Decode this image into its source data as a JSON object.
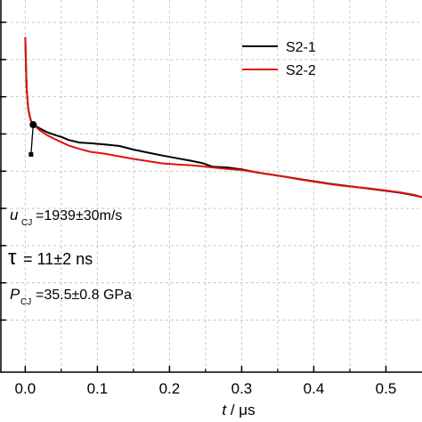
{
  "chart_data": {
    "type": "line",
    "title": "",
    "xlabel_var": "t",
    "xlabel_unit": " / μs",
    "ylabel": "",
    "xlim": [
      -0.035,
      0.55
    ],
    "ylim": [
      0,
      1
    ],
    "x_ticks": [
      0.0,
      0.1,
      0.2,
      0.3,
      0.4,
      0.5
    ],
    "x_tick_labels": [
      "0.0",
      "0.1",
      "0.2",
      "0.3",
      "0.4",
      "0.5"
    ],
    "y_ticks": [
      0.14,
      0.24,
      0.34,
      0.44,
      0.54,
      0.64,
      0.74,
      0.84,
      0.94
    ],
    "grid": true,
    "legend_position": "top-right",
    "series": [
      {
        "name": "S2-1",
        "color": "#000000",
        "points": [
          [
            0.0,
            0.9
          ],
          [
            0.001,
            0.82
          ],
          [
            0.002,
            0.76
          ],
          [
            0.004,
            0.71
          ],
          [
            0.006,
            0.69
          ],
          [
            0.008,
            0.675
          ],
          [
            0.011,
            0.665
          ],
          [
            0.02,
            0.655
          ],
          [
            0.03,
            0.645
          ],
          [
            0.04,
            0.638
          ],
          [
            0.05,
            0.632
          ],
          [
            0.06,
            0.624
          ],
          [
            0.075,
            0.617
          ],
          [
            0.09,
            0.615
          ],
          [
            0.11,
            0.612
          ],
          [
            0.13,
            0.608
          ],
          [
            0.15,
            0.598
          ],
          [
            0.17,
            0.59
          ],
          [
            0.19,
            0.582
          ],
          [
            0.21,
            0.575
          ],
          [
            0.23,
            0.568
          ],
          [
            0.245,
            0.562
          ],
          [
            0.26,
            0.552
          ],
          [
            0.28,
            0.55
          ],
          [
            0.3,
            0.545
          ],
          [
            0.32,
            0.537
          ],
          [
            0.34,
            0.531
          ],
          [
            0.36,
            0.525
          ],
          [
            0.38,
            0.519
          ],
          [
            0.4,
            0.513
          ],
          [
            0.42,
            0.507
          ],
          [
            0.44,
            0.502
          ],
          [
            0.46,
            0.497
          ],
          [
            0.48,
            0.492
          ],
          [
            0.5,
            0.487
          ],
          [
            0.52,
            0.482
          ],
          [
            0.54,
            0.475
          ],
          [
            0.55,
            0.47
          ]
        ]
      },
      {
        "name": "S2-2",
        "color": "#e01010",
        "points": [
          [
            0.0,
            0.9
          ],
          [
            0.001,
            0.82
          ],
          [
            0.002,
            0.76
          ],
          [
            0.004,
            0.71
          ],
          [
            0.006,
            0.69
          ],
          [
            0.008,
            0.675
          ],
          [
            0.011,
            0.665
          ],
          [
            0.02,
            0.65
          ],
          [
            0.03,
            0.637
          ],
          [
            0.04,
            0.627
          ],
          [
            0.05,
            0.618
          ],
          [
            0.06,
            0.609
          ],
          [
            0.075,
            0.6
          ],
          [
            0.09,
            0.592
          ],
          [
            0.11,
            0.587
          ],
          [
            0.13,
            0.58
          ],
          [
            0.15,
            0.573
          ],
          [
            0.17,
            0.567
          ],
          [
            0.19,
            0.561
          ],
          [
            0.21,
            0.558
          ],
          [
            0.23,
            0.556
          ],
          [
            0.245,
            0.553
          ],
          [
            0.26,
            0.55
          ],
          [
            0.28,
            0.546
          ],
          [
            0.3,
            0.543
          ],
          [
            0.32,
            0.537
          ],
          [
            0.34,
            0.531
          ],
          [
            0.36,
            0.525
          ],
          [
            0.38,
            0.518
          ],
          [
            0.4,
            0.512
          ],
          [
            0.42,
            0.506
          ],
          [
            0.44,
            0.501
          ],
          [
            0.46,
            0.497
          ],
          [
            0.48,
            0.493
          ],
          [
            0.5,
            0.488
          ],
          [
            0.52,
            0.483
          ],
          [
            0.54,
            0.476
          ],
          [
            0.55,
            0.47
          ]
        ]
      }
    ],
    "marker_point": [
      0.011,
      0.665
    ],
    "marker_drop_to": [
      0.008,
      0.585
    ],
    "annotations": {
      "ucj_var": "u",
      "ucj_sub": "CJ",
      "ucj_text": "=1939±30m/s",
      "tau_symbol": "τ",
      "tau_text": "= 11±2 ns",
      "pcj_var": "P",
      "pcj_sub": "CJ",
      "pcj_text": "=35.5±0.8 GPa"
    }
  }
}
